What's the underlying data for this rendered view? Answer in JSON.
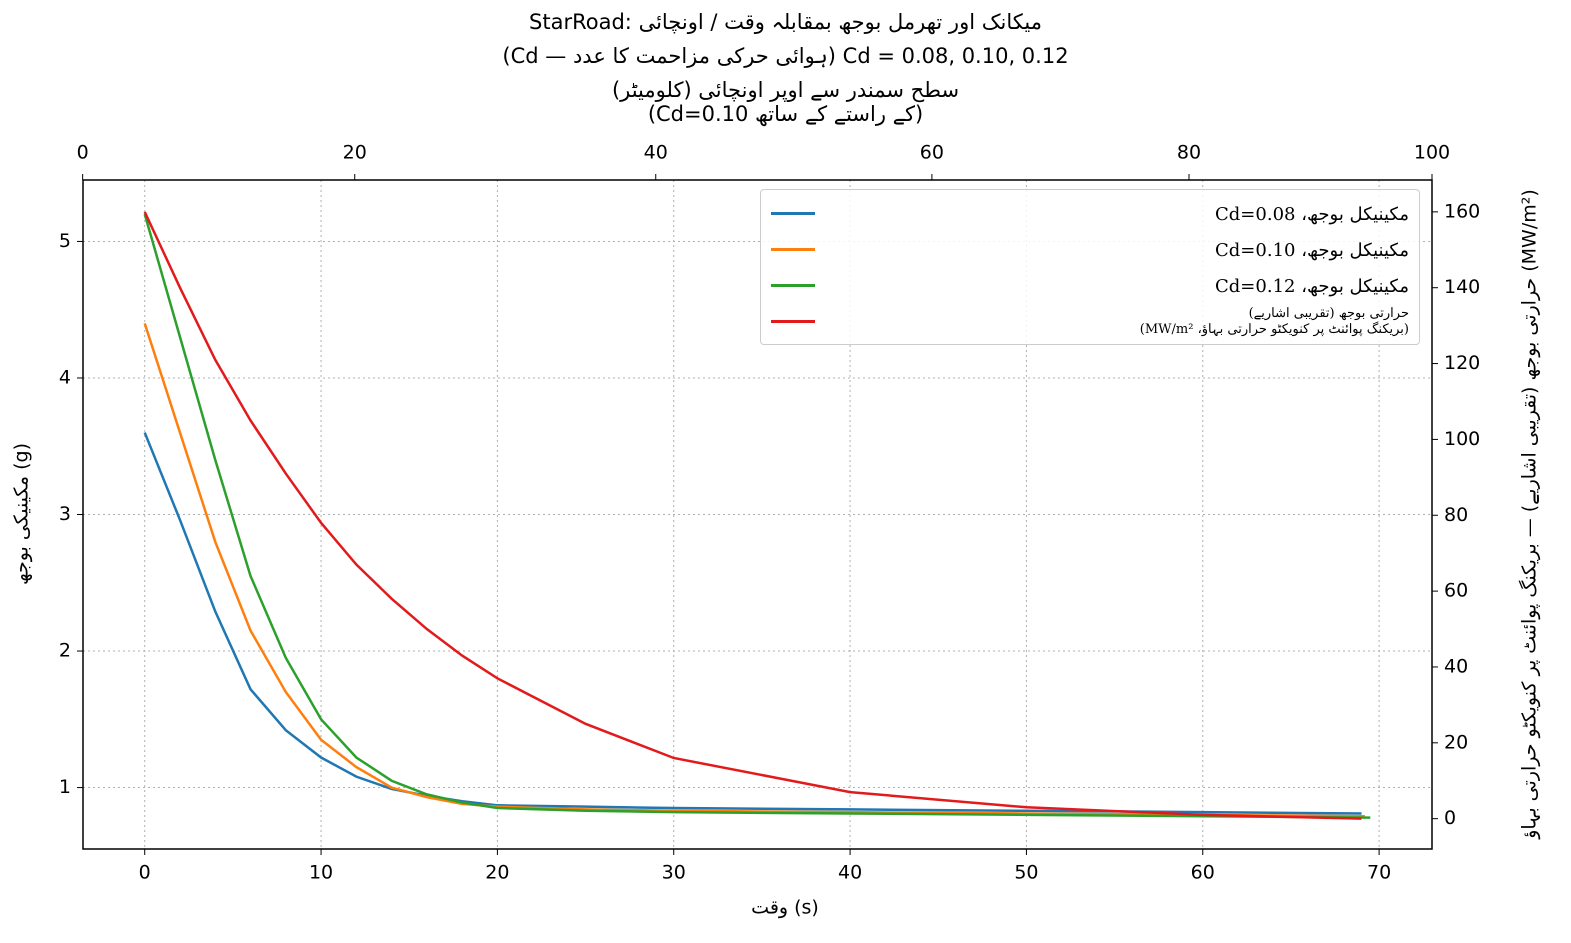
{
  "chart_data": {
    "type": "line",
    "title": "StarRoad: میکانک اور تھرمل بوجھ بمقابلہ وقت / اونچائی",
    "subtitle": "(Cd — ہوائی حرکی مزاحمت کا عدد) Cd = 0.08, 0.10, 0.12",
    "x2label": "سطح سمندر سے اوپر اونچائی (کلومیٹر)\n(Cd=0.10 کے راستے کے ساتھ)",
    "xlabel": "وقت (s)",
    "ylabel": "مکینیکی بوجھ (g)",
    "y2label": "حرارتی بوجھ (تقریبی اشاریے) — بریکنگ پوائنٹ پر کنویکٹو حرارتی بہاؤ (MW/m²)",
    "xlim": [
      -3.5,
      73.0
    ],
    "xticks": [
      0,
      10,
      20,
      30,
      40,
      50,
      60,
      70
    ],
    "ylim": [
      0.55,
      5.45
    ],
    "yticks": [
      1,
      2,
      3,
      4,
      5
    ],
    "y2lim": [
      -8,
      168.4
    ],
    "y2ticks": [
      0,
      20,
      40,
      60,
      80,
      100,
      120,
      140,
      160
    ],
    "x2ticks": [
      0,
      20,
      40,
      60,
      80,
      100
    ],
    "x2tick_times": [
      -3.52,
      11.91,
      28.98,
      44.64,
      59.22,
      73.0
    ],
    "grid": true,
    "legend_loc": "upper right",
    "series": [
      {
        "name": "مکینیکل بوجھ، Cd=0.08",
        "color": "#1f77b4",
        "x": [
          0,
          2,
          4,
          6,
          8,
          10,
          12,
          14,
          16,
          18,
          20,
          25,
          30,
          40,
          50,
          60,
          69
        ],
        "values": [
          3.6,
          2.96,
          2.29,
          1.72,
          1.42,
          1.22,
          1.08,
          0.99,
          0.94,
          0.9,
          0.87,
          0.86,
          0.85,
          0.84,
          0.83,
          0.82,
          0.81
        ]
      },
      {
        "name": "مکینیکل بوجھ، Cd=0.10",
        "color": "#ff7f0e",
        "x": [
          0,
          2,
          4,
          6,
          8,
          10,
          12,
          14,
          16,
          18,
          20,
          25,
          30,
          40,
          50,
          60,
          69.2
        ],
        "values": [
          4.4,
          3.6,
          2.8,
          2.15,
          1.7,
          1.35,
          1.15,
          1.0,
          0.93,
          0.88,
          0.86,
          0.84,
          0.83,
          0.82,
          0.81,
          0.8,
          0.79
        ]
      },
      {
        "name": "مکینیکل بوجھ، Cd=0.12",
        "color": "#2ca02c",
        "x": [
          0,
          2,
          4,
          6,
          8,
          10,
          12,
          14,
          16,
          18,
          20,
          25,
          30,
          40,
          50,
          60,
          69.5
        ],
        "values": [
          5.2,
          4.3,
          3.4,
          2.55,
          1.95,
          1.5,
          1.22,
          1.05,
          0.95,
          0.89,
          0.85,
          0.83,
          0.82,
          0.81,
          0.8,
          0.79,
          0.78
        ]
      },
      {
        "name": "حرارتی بوجھ (تقریبی اشاریے)\n(بریکنگ پوائنٹ پر کنویکٹو حرارتی بہاؤ، MW/m²)",
        "color": "#e31a1c",
        "axis": "y2",
        "x": [
          0,
          2,
          4,
          6,
          8,
          10,
          12,
          14,
          16,
          18,
          20,
          25,
          30,
          40,
          50,
          60,
          69
        ],
        "values": [
          160,
          140,
          121,
          105,
          91,
          78,
          67,
          58,
          50,
          43,
          37,
          25,
          16,
          7,
          3,
          1,
          0
        ]
      }
    ]
  }
}
